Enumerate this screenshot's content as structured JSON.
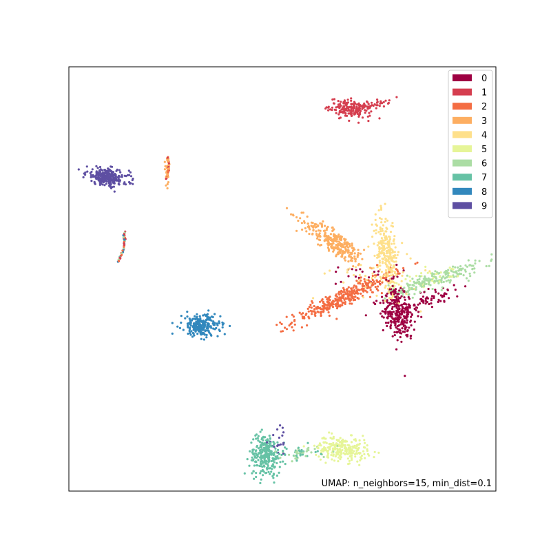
{
  "chart_data": {
    "type": "scatter",
    "title": "",
    "xlabel": "",
    "ylabel": "",
    "xlim": [
      0,
      10
    ],
    "ylim": [
      0,
      10
    ],
    "ticks_visible": false,
    "grid": false,
    "legend": {
      "placement": "top-right",
      "entries": [
        "0",
        "1",
        "2",
        "3",
        "4",
        "5",
        "6",
        "7",
        "8",
        "9"
      ]
    },
    "annotation": "UMAP: n_neighbors=15, min_dist=0.1",
    "annotation_placement": "bottom-right",
    "colors": {
      "0": "#9e0142",
      "1": "#d53e4f",
      "2": "#f46d43",
      "3": "#fdae61",
      "4": "#fee08b",
      "5": "#e6f598",
      "6": "#abdda4",
      "7": "#66c2a5",
      "8": "#3288bd",
      "9": "#5e4fa2"
    },
    "series": [
      {
        "name": "0",
        "clusters": [
          {
            "cx": 7.7,
            "cy": 4.2,
            "sx": 0.18,
            "sy": 0.35,
            "n": 260,
            "rot": 0.3
          },
          {
            "cx": 8.4,
            "cy": 4.5,
            "sx": 0.45,
            "sy": 0.12,
            "n": 80,
            "rot": 0.35
          },
          {
            "cx": 6.9,
            "cy": 5.1,
            "sx": 0.4,
            "sy": 0.12,
            "n": 25,
            "rot": 0
          }
        ]
      },
      {
        "name": "1",
        "clusters": [
          {
            "cx": 6.6,
            "cy": 9.0,
            "sx": 0.25,
            "sy": 0.1,
            "n": 170,
            "rot": -0.15
          },
          {
            "cx": 7.1,
            "cy": 9.1,
            "sx": 0.2,
            "sy": 0.05,
            "n": 40,
            "rot": 0.2
          }
        ]
      },
      {
        "name": "2",
        "clusters": [
          {
            "cx": 6.4,
            "cy": 4.55,
            "sx": 0.65,
            "sy": 0.1,
            "n": 330,
            "rot": 0.45
          }
        ]
      },
      {
        "name": "3",
        "clusters": [
          {
            "cx": 6.25,
            "cy": 5.85,
            "sx": 0.45,
            "sy": 0.12,
            "n": 280,
            "rot": -0.6
          },
          {
            "cx": 2.3,
            "cy": 7.6,
            "sx": 0.03,
            "sy": 0.2,
            "n": 25,
            "rot": 0
          }
        ]
      },
      {
        "name": "4",
        "clusters": [
          {
            "cx": 7.45,
            "cy": 5.6,
            "sx": 0.12,
            "sy": 0.45,
            "n": 240,
            "rot": 0.15
          },
          {
            "cx": 7.2,
            "cy": 5.1,
            "sx": 0.5,
            "sy": 0.3,
            "n": 60,
            "rot": 0
          }
        ]
      },
      {
        "name": "5",
        "clusters": [
          {
            "cx": 6.4,
            "cy": 1.0,
            "sx": 0.3,
            "sy": 0.14,
            "n": 240,
            "rot": -0.1
          },
          {
            "cx": 8.4,
            "cy": 5.0,
            "sx": 0.4,
            "sy": 0.1,
            "n": 40,
            "rot": 0.3
          }
        ]
      },
      {
        "name": "6",
        "clusters": [
          {
            "cx": 8.6,
            "cy": 5.0,
            "sx": 0.55,
            "sy": 0.1,
            "n": 200,
            "rot": 0.3
          },
          {
            "cx": 5.5,
            "cy": 0.9,
            "sx": 0.35,
            "sy": 0.08,
            "n": 30,
            "rot": 0
          }
        ]
      },
      {
        "name": "7",
        "clusters": [
          {
            "cx": 4.6,
            "cy": 0.85,
            "sx": 0.18,
            "sy": 0.25,
            "n": 260,
            "rot": 0
          },
          {
            "cx": 5.2,
            "cy": 0.9,
            "sx": 0.3,
            "sy": 0.08,
            "n": 40,
            "rot": 0
          }
        ]
      },
      {
        "name": "8",
        "clusters": [
          {
            "cx": 3.1,
            "cy": 3.9,
            "sx": 0.22,
            "sy": 0.13,
            "n": 240,
            "rot": -0.05
          }
        ]
      },
      {
        "name": "9",
        "clusters": [
          {
            "cx": 0.9,
            "cy": 7.4,
            "sx": 0.25,
            "sy": 0.1,
            "n": 250,
            "rot": -0.15
          },
          {
            "cx": 4.9,
            "cy": 1.15,
            "sx": 0.12,
            "sy": 0.15,
            "n": 20,
            "rot": 0
          }
        ]
      }
    ],
    "arcs": [
      {
        "from": [
          2.3,
          7.88
        ],
        "to": [
          2.27,
          7.35
        ],
        "colors": [
          "3",
          "1",
          "2"
        ],
        "n": 30
      },
      {
        "from": [
          1.3,
          6.1
        ],
        "to": [
          1.15,
          5.4
        ],
        "colors": [
          "2",
          "1",
          "8",
          "7",
          "6"
        ],
        "n": 40
      }
    ]
  }
}
